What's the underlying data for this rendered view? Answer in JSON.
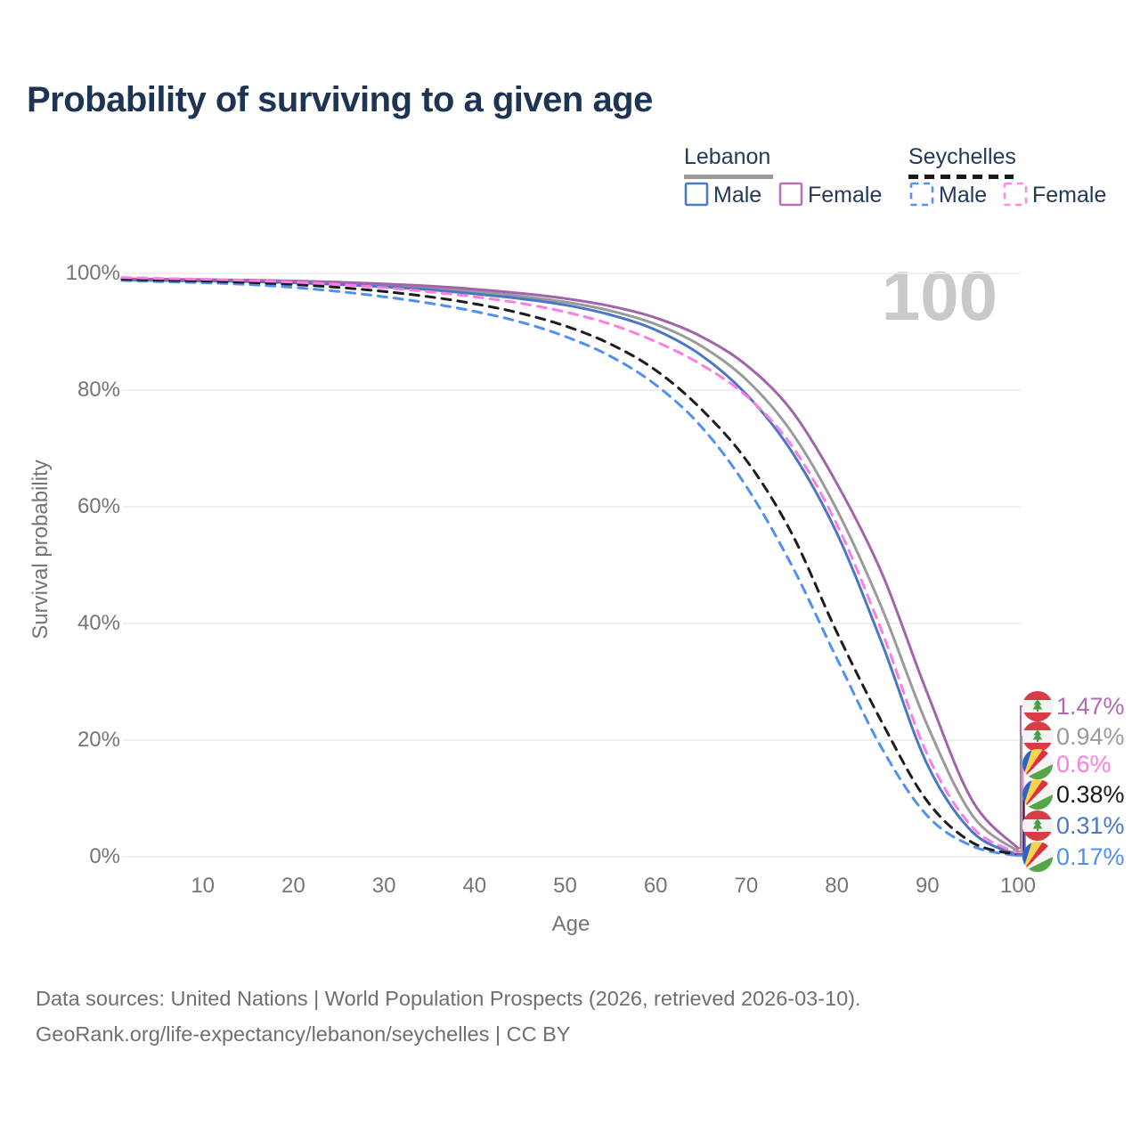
{
  "title": "Probability of surviving to a given age",
  "watermark_age": "100",
  "legend": {
    "groups": [
      {
        "id": "lebanon",
        "label": "Lebanon",
        "line_style": "solid",
        "line_color": "#9a9a9a",
        "items": [
          {
            "label": "Male",
            "color": "#4a7dc3",
            "dashed": false
          },
          {
            "label": "Female",
            "color": "#b573b5",
            "dashed": false
          }
        ]
      },
      {
        "id": "seychelles",
        "label": "Seychelles",
        "line_style": "dashed",
        "line_color": "#1a1a1a",
        "items": [
          {
            "label": "Male",
            "color": "#5591ef",
            "dashed": true
          },
          {
            "label": "Female",
            "color": "#ff8ce4",
            "dashed": true
          }
        ]
      }
    ]
  },
  "chart_data": {
    "type": "line",
    "title": "Probability of surviving to a given age",
    "xlabel": "Age",
    "ylabel": "Survival probability",
    "xlim": [
      0,
      100
    ],
    "ylim": [
      0,
      100
    ],
    "grid": "horizontal-only",
    "legend_position": "top-right",
    "hover_age_indicator": "100",
    "x_ticks": [
      10,
      20,
      30,
      40,
      50,
      60,
      70,
      80,
      90,
      100
    ],
    "x_tick_labels": [
      "10",
      "20",
      "30",
      "40",
      "50",
      "60",
      "70",
      "80",
      "90",
      "100"
    ],
    "y_ticks": [
      0,
      20,
      40,
      60,
      80,
      100
    ],
    "y_tick_labels": [
      "0%",
      "20%",
      "40%",
      "60%",
      "80%",
      "100%"
    ],
    "x": [
      0,
      5,
      10,
      15,
      20,
      25,
      30,
      35,
      40,
      45,
      50,
      55,
      60,
      65,
      70,
      75,
      80,
      85,
      90,
      95,
      100
    ],
    "series": [
      {
        "name": "Lebanon",
        "country": "Lebanon",
        "sex": "Both",
        "line": "solid",
        "color": "#9a9a9a",
        "end_label": "0.94%",
        "values": [
          99.0,
          98.9,
          98.8,
          98.7,
          98.55,
          98.3,
          97.95,
          97.5,
          96.9,
          96.1,
          95.1,
          93.6,
          91.3,
          87.6,
          81.8,
          72.8,
          59.5,
          42.5,
          22.5,
          7.0,
          0.94
        ]
      },
      {
        "name": "Lebanon Male",
        "country": "Lebanon",
        "sex": "Male",
        "line": "solid",
        "color": "#4a77c4",
        "end_label": "0.31%",
        "values": [
          98.9,
          98.8,
          98.7,
          98.6,
          98.4,
          98.1,
          97.7,
          97.2,
          96.5,
          95.7,
          94.6,
          92.9,
          90.3,
          86.0,
          79.3,
          69.5,
          55.5,
          36.5,
          15.8,
          4.2,
          0.31
        ]
      },
      {
        "name": "Lebanon Female",
        "country": "Lebanon",
        "sex": "Female",
        "line": "solid",
        "color": "#a263ab",
        "end_label": "1.47%",
        "values": [
          99.1,
          99.0,
          98.95,
          98.85,
          98.7,
          98.5,
          98.2,
          97.85,
          97.3,
          96.6,
          95.7,
          94.4,
          92.4,
          89.2,
          84.3,
          76.5,
          64.0,
          48.5,
          28.0,
          9.5,
          1.47
        ]
      },
      {
        "name": "Seychelles Male",
        "country": "Seychelles",
        "sex": "Male",
        "line": "dashed",
        "color": "#4f90f0",
        "end_label": "0.17%",
        "values": [
          98.8,
          98.6,
          98.4,
          98.1,
          97.6,
          96.9,
          96.0,
          94.9,
          93.5,
          91.7,
          89.2,
          85.8,
          80.9,
          73.8,
          63.5,
          50.0,
          34.0,
          18.5,
          7.0,
          1.8,
          0.17
        ]
      },
      {
        "name": "Seychelles",
        "country": "Seychelles",
        "sex": "Both",
        "line": "dashed",
        "color": "#1c1c1c",
        "end_label": "0.38%",
        "values": [
          99.0,
          98.85,
          98.7,
          98.45,
          98.1,
          97.6,
          96.9,
          96.0,
          94.8,
          93.2,
          91.0,
          87.9,
          83.4,
          76.8,
          68.0,
          55.5,
          38.5,
          23.0,
          9.5,
          2.4,
          0.38
        ]
      },
      {
        "name": "Seychelles Female",
        "country": "Seychelles",
        "sex": "Female",
        "line": "dashed",
        "color": "#ff7ce1",
        "end_label": "0.6%",
        "values": [
          99.3,
          99.15,
          99.0,
          98.8,
          98.5,
          98.1,
          97.55,
          96.85,
          96.0,
          94.9,
          93.4,
          91.3,
          88.3,
          84.4,
          79.0,
          70.5,
          57.0,
          38.5,
          17.5,
          5.0,
          0.6
        ]
      }
    ]
  },
  "end_labels": [
    {
      "value": "1.47%",
      "series": "Lebanon Female",
      "flag": "lebanon",
      "color": "#b16ab1"
    },
    {
      "value": "0.94%",
      "series": "Lebanon",
      "flag": "lebanon",
      "color": "#9a9a9a"
    },
    {
      "value": "0.6%",
      "series": "Seychelles Female",
      "flag": "seychelles",
      "color": "#ff7ce1"
    },
    {
      "value": "0.38%",
      "series": "Seychelles",
      "flag": "seychelles",
      "color": "#1a1a1a"
    },
    {
      "value": "0.31%",
      "series": "Lebanon Male",
      "flag": "lebanon",
      "color": "#4a77c4"
    },
    {
      "value": "0.17%",
      "series": "Seychelles Male",
      "flag": "seychelles",
      "color": "#4f90f0"
    }
  ],
  "footer": {
    "line1": "Data sources: United Nations | World Population Prospects (2026, retrieved 2026-03-10).",
    "line2": "GeoRank.org/life-expectancy/lebanon/seychelles | CC BY"
  }
}
